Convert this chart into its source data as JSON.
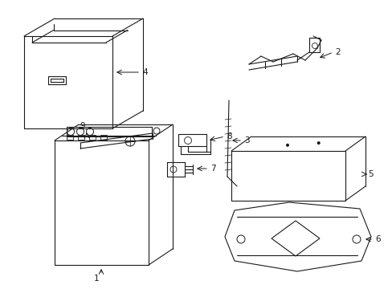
{
  "background_color": "#ffffff",
  "line_color": "#1a1a1a",
  "line_width": 0.8,
  "figure_width": 4.89,
  "figure_height": 3.6,
  "dpi": 100
}
